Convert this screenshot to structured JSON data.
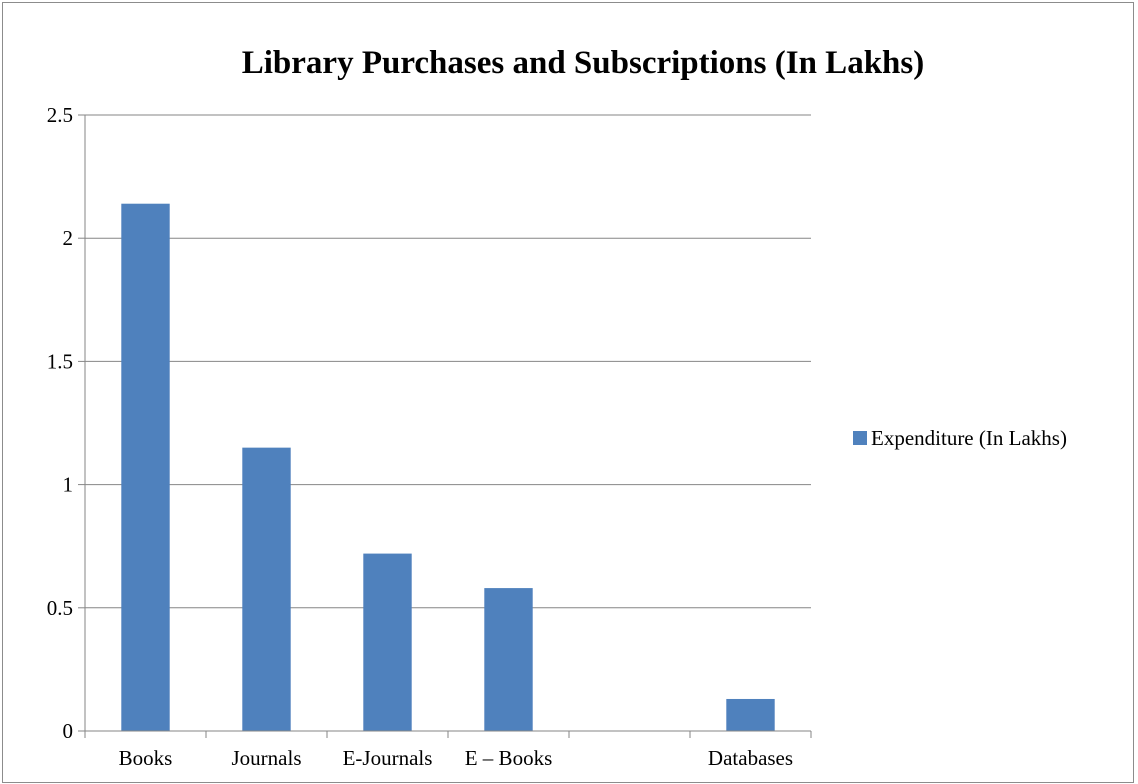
{
  "chart_data": {
    "type": "bar",
    "title": "Library Purchases and Subscriptions (In Lakhs)",
    "xlabel": "",
    "ylabel": "",
    "categories": [
      "Books",
      "Journals",
      "E-Journals",
      "E – Books",
      "",
      "Databases"
    ],
    "series": [
      {
        "name": "Expenditure (In Lakhs)",
        "values": [
          2.14,
          1.15,
          0.72,
          0.58,
          null,
          0.13
        ],
        "color": "#4f81bd"
      }
    ],
    "ylim": [
      0,
      2.5
    ],
    "yticks": [
      0,
      0.5,
      1,
      1.5,
      2,
      2.5
    ],
    "ytick_labels": [
      "0",
      "0.5",
      "1",
      "1.5",
      "2",
      "2.5"
    ],
    "grid": true,
    "legend_position": "right"
  }
}
